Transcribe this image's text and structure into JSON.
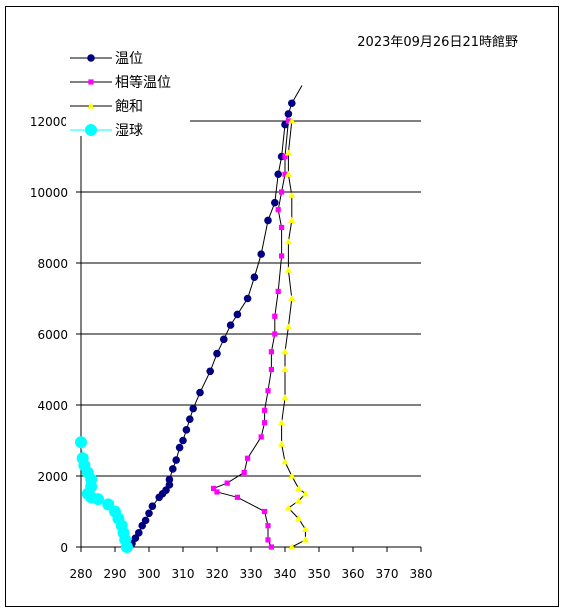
{
  "chart_data": {
    "type": "scatter",
    "title": "2023年09月26日21時館野",
    "xlabel": "",
    "ylabel": "",
    "xlim": [
      280,
      380
    ],
    "ylim": [
      0,
      12000
    ],
    "xticks": [
      "280",
      "290",
      "300",
      "310",
      "320",
      "330",
      "340",
      "350",
      "360",
      "370",
      "380"
    ],
    "yticks": [
      "0",
      "2000",
      "4000",
      "6000",
      "8000",
      "10000",
      "12000"
    ],
    "grid": "horizontal",
    "legend": "top-left",
    "series": [
      {
        "name": "温位",
        "color": "#000080",
        "marker": "circle",
        "points": [
          [
            294,
            0
          ],
          [
            295,
            100
          ],
          [
            296,
            250
          ],
          [
            297,
            400
          ],
          [
            298,
            600
          ],
          [
            299,
            750
          ],
          [
            300,
            950
          ],
          [
            301,
            1150
          ],
          [
            303,
            1400
          ],
          [
            304,
            1500
          ],
          [
            305,
            1600
          ],
          [
            306,
            1750
          ],
          [
            306,
            1900
          ],
          [
            307,
            2200
          ],
          [
            308,
            2450
          ],
          [
            309,
            2800
          ],
          [
            310,
            3000
          ],
          [
            311,
            3300
          ],
          [
            312,
            3600
          ],
          [
            313,
            3900
          ],
          [
            315,
            4350
          ],
          [
            318,
            4950
          ],
          [
            320,
            5450
          ],
          [
            322,
            5850
          ],
          [
            324,
            6250
          ],
          [
            326,
            6550
          ],
          [
            329,
            7000
          ],
          [
            331,
            7600
          ],
          [
            333,
            8250
          ],
          [
            335,
            9200
          ],
          [
            337,
            9700
          ],
          [
            338,
            10500
          ],
          [
            339,
            11000
          ],
          [
            340,
            11900
          ],
          [
            341,
            12200
          ],
          [
            342,
            12500
          ],
          [
            345,
            13000
          ]
        ]
      },
      {
        "name": "相等温位",
        "color": "#ff00ff",
        "marker": "square",
        "points": [
          [
            336,
            0
          ],
          [
            335,
            200
          ],
          [
            335,
            600
          ],
          [
            334,
            1000
          ],
          [
            326,
            1400
          ],
          [
            320,
            1550
          ],
          [
            319,
            1650
          ],
          [
            323,
            1800
          ],
          [
            328,
            2100
          ],
          [
            329,
            2500
          ],
          [
            333,
            3100
          ],
          [
            334,
            3500
          ],
          [
            334,
            3850
          ],
          [
            335,
            4400
          ],
          [
            336,
            5000
          ],
          [
            336,
            5500
          ],
          [
            337,
            6000
          ],
          [
            337,
            6500
          ],
          [
            338,
            7200
          ],
          [
            339,
            8200
          ],
          [
            339,
            9000
          ],
          [
            338,
            9500
          ],
          [
            339,
            10000
          ],
          [
            340,
            10500
          ],
          [
            340,
            11000
          ],
          [
            341,
            12000
          ]
        ]
      },
      {
        "name": "飽和",
        "color": "#ffff00",
        "marker": "triangle",
        "points": [
          [
            342,
            0
          ],
          [
            346,
            200
          ],
          [
            346,
            500
          ],
          [
            344,
            800
          ],
          [
            341,
            1100
          ],
          [
            344,
            1300
          ],
          [
            346,
            1500
          ],
          [
            344,
            1650
          ],
          [
            342,
            2000
          ],
          [
            340,
            2400
          ],
          [
            339,
            2900
          ],
          [
            339,
            3500
          ],
          [
            340,
            4200
          ],
          [
            340,
            5000
          ],
          [
            340,
            5500
          ],
          [
            341,
            6200
          ],
          [
            342,
            7000
          ],
          [
            341,
            7800
          ],
          [
            341,
            8600
          ],
          [
            342,
            9200
          ],
          [
            342,
            9900
          ],
          [
            341,
            10500
          ],
          [
            341,
            11100
          ],
          [
            342,
            12000
          ]
        ]
      },
      {
        "name": "湿球",
        "color": "#00ffff",
        "marker": "circle",
        "points": [
          [
            280,
            2950
          ],
          [
            280.5,
            2500
          ],
          [
            281,
            2300
          ],
          [
            282,
            2100
          ],
          [
            283,
            1900
          ],
          [
            283,
            1700
          ],
          [
            282,
            1500
          ],
          [
            283,
            1400
          ],
          [
            285,
            1350
          ],
          [
            288,
            1200
          ],
          [
            290,
            1000
          ],
          [
            291,
            800
          ],
          [
            292,
            600
          ],
          [
            292.5,
            400
          ],
          [
            293,
            200
          ],
          [
            293.5,
            0
          ]
        ]
      }
    ]
  }
}
